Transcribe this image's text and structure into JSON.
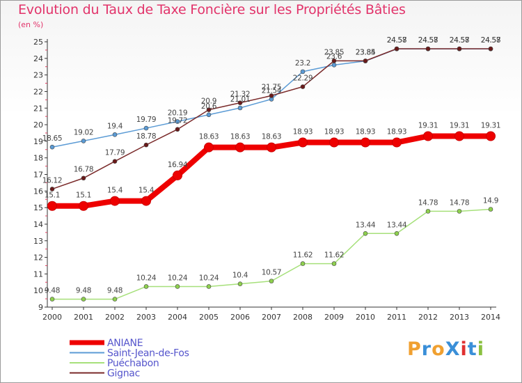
{
  "title": "Evolution du Taux de Taxe Foncière sur les Propriétés Bâties",
  "subtitle": "(en %)",
  "logo": {
    "text": "ProXiti",
    "colors": [
      "#f0a030",
      "#3a8fd8",
      "#f0a030",
      "#3a8fd8",
      "#e03030",
      "#3a8fd8",
      "#8ac040"
    ]
  },
  "chart_data": {
    "type": "line",
    "x": [
      2000,
      2001,
      2002,
      2003,
      2004,
      2005,
      2006,
      2007,
      2008,
      2009,
      2010,
      2011,
      2012,
      2013,
      2014
    ],
    "ylim": [
      9,
      25
    ],
    "yticks": [
      9,
      10,
      11,
      12,
      13,
      14,
      15,
      16,
      17,
      18,
      19,
      20,
      21,
      22,
      23,
      24,
      25
    ],
    "grid": false,
    "legend_position": "bottom-left",
    "series": [
      {
        "name": "ANIANE",
        "color": "#ee0000",
        "marker": "#ee0000",
        "width": 8,
        "values": [
          15.1,
          15.1,
          15.4,
          15.4,
          16.94,
          18.63,
          18.63,
          18.63,
          18.93,
          18.93,
          18.93,
          18.93,
          19.31,
          19.31,
          19.31
        ],
        "labels": [
          "15.1",
          "15.1",
          "15.4",
          "15.4",
          "16.94",
          "18.63",
          "18.63",
          "18.63",
          "18.93",
          "18.93",
          "18.93",
          "18.93",
          "19.31",
          "19.31",
          "19.31"
        ]
      },
      {
        "name": "Saint-Jean-de-Fos",
        "color": "#5b9bd5",
        "marker": "#5b9bd5",
        "width": 1.5,
        "values": [
          18.65,
          19.02,
          19.4,
          19.79,
          20.19,
          20.6,
          21.01,
          21.54,
          23.2,
          23.6,
          23.84,
          24.57,
          24.57,
          24.57,
          24.57
        ],
        "labels": [
          "18.65",
          "19.02",
          "19.4",
          "19.79",
          "20.19",
          "20.6",
          "21.01",
          "21.54",
          "23.2",
          "23.6",
          "23.84",
          "24.57",
          "24.57",
          "24.57",
          "24.57"
        ]
      },
      {
        "name": "Puéchabon",
        "color": "#a6e07a",
        "marker": "#8ed04e",
        "width": 1.5,
        "values": [
          9.48,
          9.48,
          9.48,
          10.24,
          10.24,
          10.24,
          10.4,
          10.57,
          11.62,
          11.62,
          13.44,
          13.44,
          14.78,
          14.78,
          14.9
        ],
        "labels": [
          "9.48",
          "9.48",
          "9.48",
          "10.24",
          "10.24",
          "10.24",
          "10.4",
          "10.57",
          "11.62",
          "11.62",
          "13.44",
          "13.44",
          "14.78",
          "14.78",
          "14.9"
        ]
      },
      {
        "name": "Gignac",
        "color": "#7a2a2a",
        "marker": "#6a1a1a",
        "width": 1.5,
        "values": [
          16.12,
          16.78,
          17.79,
          18.78,
          19.72,
          20.9,
          21.32,
          21.75,
          22.29,
          23.85,
          23.85,
          24.58,
          24.58,
          24.58,
          24.58
        ],
        "labels": [
          "16.12",
          "16.78",
          "17.79",
          "18.78",
          "19.72",
          "20.9",
          "21.32",
          "21.75",
          "22.29",
          "23.85",
          "23.85",
          "24.58",
          "24.58",
          "24.58",
          "24.58"
        ]
      }
    ]
  }
}
